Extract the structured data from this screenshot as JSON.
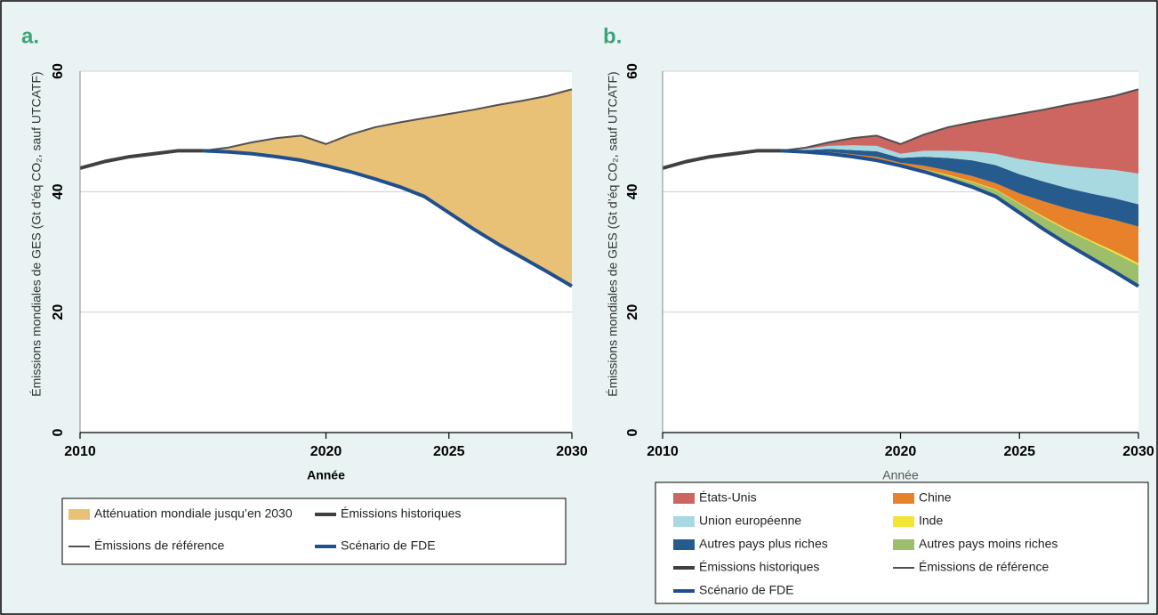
{
  "chart_data": [
    {
      "type": "area",
      "panel_label": "a.",
      "x_label": "Année",
      "y_label": "Émissions mondiales de GES (Gt d’éq CO₂, sauf UTCATF)",
      "x": [
        2010,
        2011,
        2012,
        2013,
        2014,
        2015,
        2016,
        2017,
        2018,
        2019,
        2020,
        2021,
        2022,
        2023,
        2024,
        2025,
        2026,
        2027,
        2028,
        2029,
        2030
      ],
      "xlim": [
        2010,
        2030
      ],
      "xticks": [
        2010,
        2020,
        2025,
        2030
      ],
      "ylim": [
        0,
        60
      ],
      "yticks": [
        0,
        20,
        40,
        60
      ],
      "grid": true,
      "series": [
        {
          "name": "Atténuation mondiale jusqu’en 2030",
          "style": "area",
          "color": "#e9c176",
          "values": [
            null,
            null,
            null,
            null,
            null,
            0,
            0.7,
            1.9,
            3.1,
            4.1,
            3.6,
            6.2,
            8.6,
            10.7,
            13.0,
            16.4,
            19.8,
            23.1,
            26.1,
            29.2,
            32.7
          ]
        },
        {
          "name": "Émissions historiques",
          "style": "line",
          "color": "#404040",
          "values": [
            43.9,
            45.0,
            45.8,
            46.3,
            46.8,
            46.8,
            null,
            null,
            null,
            null,
            null,
            null,
            null,
            null,
            null,
            null,
            null,
            null,
            null,
            null,
            null
          ]
        },
        {
          "name": "Émissions de référence",
          "style": "line",
          "color": "#505050",
          "values": [
            null,
            null,
            null,
            null,
            null,
            46.8,
            47.3,
            48.2,
            48.9,
            49.3,
            47.9,
            49.5,
            50.7,
            51.5,
            52.2,
            52.9,
            53.6,
            54.4,
            55.1,
            55.9,
            57.0
          ]
        },
        {
          "name": "Scénario de FDE",
          "style": "line",
          "color": "#1f4f8f",
          "values": [
            null,
            null,
            null,
            null,
            null,
            46.8,
            46.6,
            46.3,
            45.8,
            45.2,
            44.3,
            43.3,
            42.1,
            40.8,
            39.2,
            36.5,
            33.8,
            31.3,
            29.0,
            26.7,
            24.3
          ]
        }
      ]
    },
    {
      "type": "area",
      "panel_label": "b.",
      "x_label": "Année",
      "y_label": "Émissions mondiales de GES (Gt d’éq CO₂, sauf UTCATF)",
      "x": [
        2010,
        2011,
        2012,
        2013,
        2014,
        2015,
        2016,
        2017,
        2018,
        2019,
        2020,
        2021,
        2022,
        2023,
        2024,
        2025,
        2026,
        2027,
        2028,
        2029,
        2030
      ],
      "xlim": [
        2010,
        2030
      ],
      "xticks": [
        2010,
        2020,
        2025,
        2030
      ],
      "ylim": [
        0,
        60
      ],
      "yticks": [
        0,
        20,
        40,
        60
      ],
      "grid": true,
      "series": [
        {
          "name": "États-Unis",
          "style": "area",
          "color": "#cd6560",
          "values": [
            null,
            null,
            null,
            null,
            null,
            0,
            0.2,
            0.6,
            1.2,
            1.7,
            1.6,
            2.7,
            3.9,
            4.8,
            5.9,
            7.5,
            8.8,
            10.1,
            11.2,
            12.3,
            14.0
          ]
        },
        {
          "name": "Chine",
          "style": "area",
          "color": "#e8822a",
          "values": [
            null,
            null,
            null,
            null,
            null,
            0,
            0.1,
            0.2,
            0.3,
            0.4,
            0.3,
            0.6,
            0.7,
            0.9,
            1.0,
            1.6,
            2.5,
            3.4,
            4.3,
            5.2,
            6.1
          ]
        },
        {
          "name": "Union européenne",
          "style": "area",
          "color": "#a8d9e1",
          "values": [
            null,
            null,
            null,
            null,
            null,
            0,
            0.2,
            0.5,
            0.8,
            0.9,
            0.7,
            1.0,
            1.2,
            1.5,
            1.9,
            2.5,
            3.1,
            3.7,
            4.2,
            4.7,
            5.1
          ]
        },
        {
          "name": "Inde",
          "style": "area",
          "color": "#f3e535",
          "values": [
            null,
            null,
            null,
            null,
            null,
            0,
            0,
            0,
            0,
            0,
            0,
            0,
            0.1,
            0.1,
            0.1,
            0.1,
            0.2,
            0.2,
            0.2,
            0.3,
            0.3
          ]
        },
        {
          "name": "Autres pays plus riches",
          "style": "area",
          "color": "#255b8d",
          "values": [
            null,
            null,
            null,
            null,
            null,
            0,
            0.2,
            0.5,
            0.7,
            0.9,
            0.8,
            1.5,
            2.1,
            2.6,
            3.0,
            3.2,
            3.3,
            3.4,
            3.5,
            3.6,
            3.7
          ]
        },
        {
          "name": "Autres pays moins riches",
          "style": "area",
          "color": "#9dbe6b",
          "values": [
            null,
            null,
            null,
            null,
            null,
            0,
            0,
            0.1,
            0.1,
            0.2,
            0.2,
            0.4,
            0.6,
            0.8,
            1.1,
            1.5,
            1.9,
            2.3,
            2.7,
            3.1,
            3.5
          ]
        },
        {
          "name": "Émissions historiques",
          "style": "line",
          "color": "#404040",
          "values": [
            43.9,
            45.0,
            45.8,
            46.3,
            46.8,
            46.8,
            null,
            null,
            null,
            null,
            null,
            null,
            null,
            null,
            null,
            null,
            null,
            null,
            null,
            null,
            null
          ]
        },
        {
          "name": "Émissions de référence",
          "style": "line",
          "color": "#505050",
          "values": [
            null,
            null,
            null,
            null,
            null,
            46.8,
            47.3,
            48.2,
            48.9,
            49.3,
            47.9,
            49.5,
            50.7,
            51.5,
            52.2,
            52.9,
            53.6,
            54.4,
            55.1,
            55.9,
            57.0
          ]
        },
        {
          "name": "Scénario de FDE",
          "style": "line",
          "color": "#1f4f8f",
          "values": [
            null,
            null,
            null,
            null,
            null,
            46.8,
            46.6,
            46.3,
            45.8,
            45.2,
            44.3,
            43.3,
            42.1,
            40.8,
            39.2,
            36.5,
            33.8,
            31.3,
            29.0,
            26.7,
            24.3
          ]
        }
      ]
    }
  ]
}
